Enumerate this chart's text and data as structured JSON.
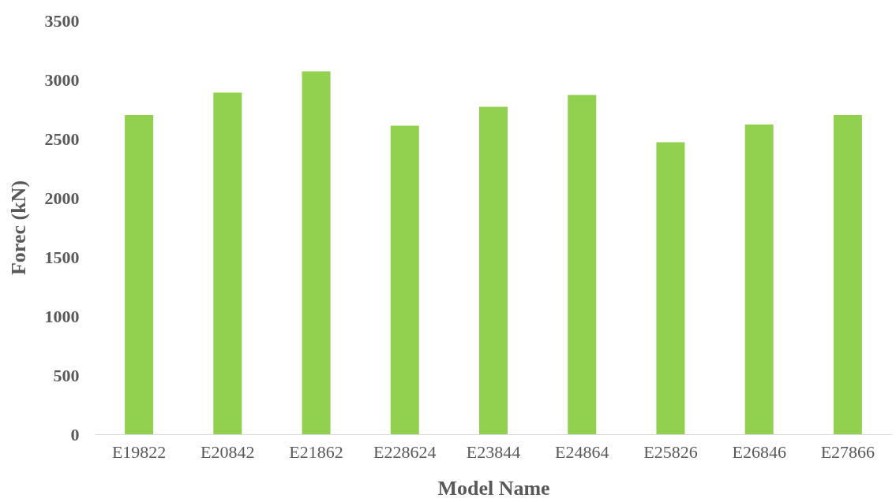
{
  "chart_data": {
    "type": "bar",
    "xlabel": "Model Name",
    "ylabel": "Forec (kN)",
    "categories": [
      "E19822",
      "E20842",
      "E21862",
      "E228624",
      "E23844",
      "E24864",
      "E25826",
      "E26846",
      "E27866"
    ],
    "values": [
      2700,
      2890,
      3070,
      2610,
      2770,
      2870,
      2470,
      2620,
      2700
    ],
    "color": "#92d050",
    "ylim": [
      0,
      3500
    ],
    "yticks": [
      0,
      500,
      1000,
      1500,
      2000,
      2500,
      3000,
      3500
    ],
    "grid": false
  }
}
